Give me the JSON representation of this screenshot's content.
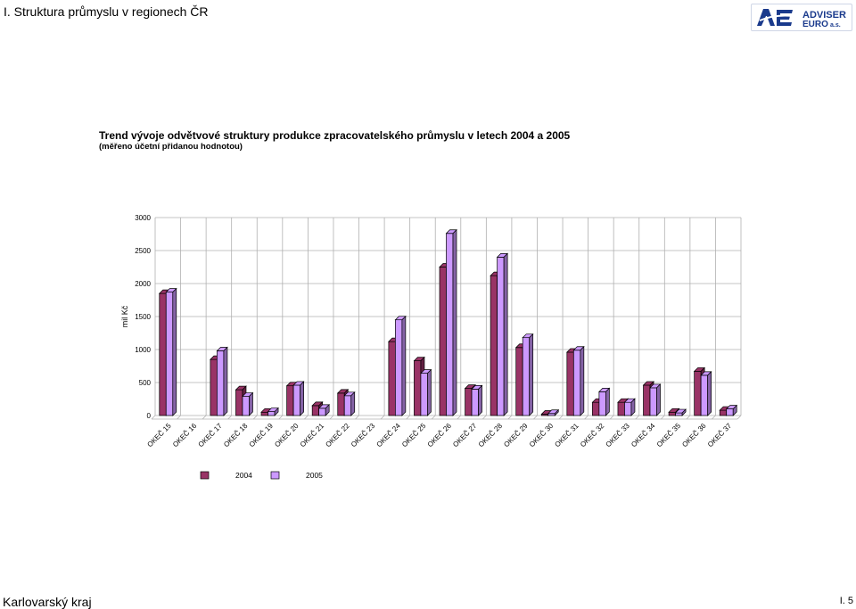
{
  "header": {
    "section_title": "I. Struktura průmyslu v regionech ČR",
    "logo": {
      "line1": "ADVISER",
      "line2": "EURO",
      "suffix": "a.s.",
      "brand_color": "#1a3a8c"
    }
  },
  "footer": {
    "region": "Karlovarský kraj",
    "page": "I. 5"
  },
  "chart_data": {
    "type": "bar",
    "title": "Trend vývoje odvětvové struktury produkce zpracovatelského průmyslu v letech 2004 a 2005",
    "subtitle": "(měřeno účetní přidanou hodnotou)",
    "xlabel": "",
    "ylabel": "mil Kč",
    "ylim": [
      0,
      3000
    ],
    "yticks": [
      0,
      500,
      1000,
      1500,
      2000,
      2500,
      3000
    ],
    "grid": true,
    "legend": "bottom-left",
    "categories": [
      "OKEČ 15",
      "OKEČ 16",
      "OKEČ 17",
      "OKEČ 18",
      "OKEČ 19",
      "OKEČ 20",
      "OKEČ 21",
      "OKEČ 22",
      "OKEČ 23",
      "OKEČ 24",
      "OKEČ 25",
      "OKEČ 26",
      "OKEČ 27",
      "OKEČ 28",
      "OKEČ 29",
      "OKEČ 30",
      "OKEČ 31",
      "OKEČ 32",
      "OKEČ 33",
      "OKEČ 34",
      "OKEČ 35",
      "OKEČ 36",
      "OKEČ 37"
    ],
    "series": [
      {
        "name": "2004",
        "color": "#993366",
        "values": [
          1850,
          0,
          850,
          390,
          50,
          450,
          150,
          340,
          0,
          1120,
          830,
          2250,
          410,
          2120,
          1030,
          20,
          960,
          200,
          200,
          460,
          50,
          670,
          80
        ]
      },
      {
        "name": "2005",
        "color": "#cc99ff",
        "values": [
          1870,
          0,
          980,
          290,
          60,
          460,
          110,
          300,
          0,
          1450,
          640,
          2760,
          400,
          2400,
          1180,
          30,
          990,
          360,
          200,
          420,
          40,
          610,
          100
        ]
      }
    ]
  }
}
